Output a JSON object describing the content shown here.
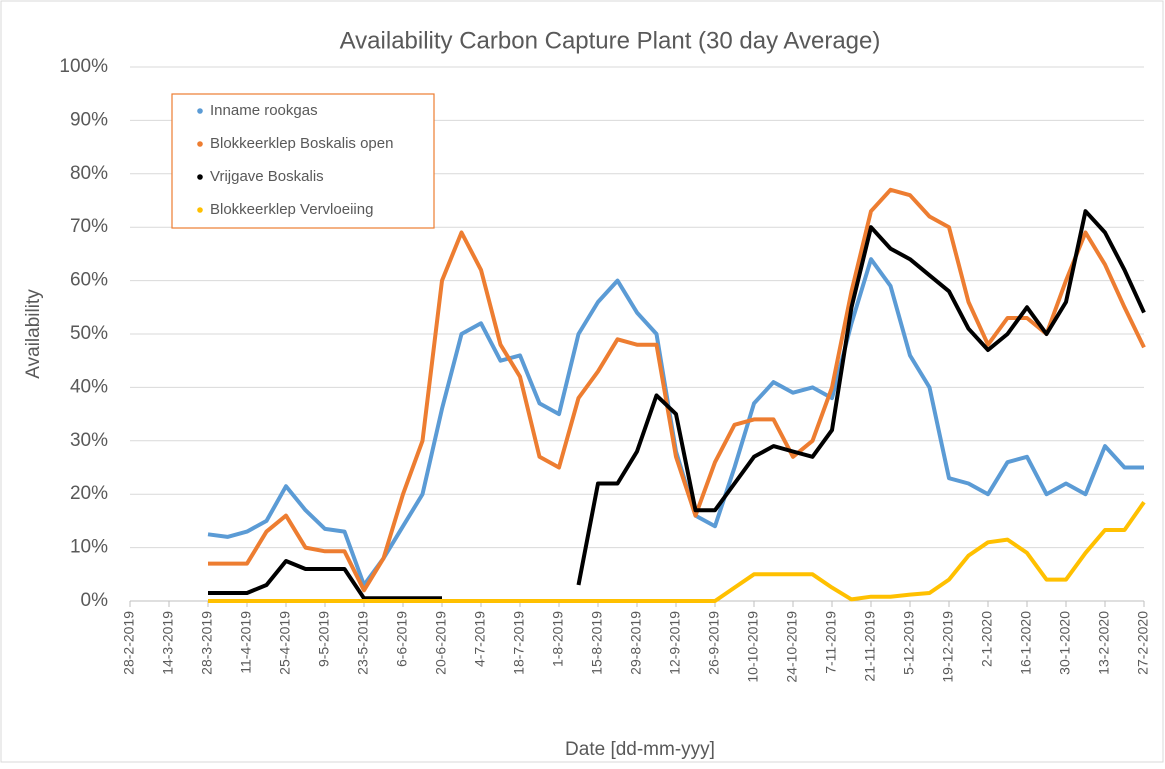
{
  "chart_data": {
    "type": "line",
    "title": "Availability Carbon Capture Plant (30 day Average)",
    "xlabel": "Date [dd-mm-yyy]",
    "ylabel": "Availability",
    "categories": [
      "28-2-2019",
      null,
      "14-3-2019",
      null,
      "28-3-2019",
      null,
      "11-4-2019",
      null,
      "25-4-2019",
      null,
      "9-5-2019",
      null,
      "23-5-2019",
      null,
      "6-6-2019",
      null,
      "20-6-2019",
      null,
      "4-7-2019",
      null,
      "18-7-2019",
      null,
      "1-8-2019",
      null,
      "15-8-2019",
      null,
      "29-8-2019",
      null,
      "12-9-2019",
      null,
      "26-9-2019",
      null,
      "10-10-2019",
      null,
      "24-10-2019",
      null,
      "7-11-2019",
      null,
      "21-11-2019",
      null,
      "5-12-2019",
      null,
      "19-12-2019",
      null,
      "2-1-2020",
      null,
      "16-1-2020",
      null,
      "30-1-2020",
      null,
      "13-2-2020",
      null,
      "27-2-2020"
    ],
    "series": [
      {
        "name": "Inname rookgas",
        "color": "#5b9bd5",
        "values": [
          null,
          null,
          null,
          null,
          12.5,
          12,
          13,
          15,
          21.5,
          17,
          13.5,
          13,
          3,
          8,
          14,
          20,
          36,
          50,
          52,
          45,
          46,
          37,
          35,
          50,
          56,
          60,
          54,
          50,
          28,
          16,
          14,
          25,
          37,
          41,
          39,
          40,
          38,
          52,
          64,
          59,
          46,
          40,
          23,
          22,
          20,
          26,
          27,
          20,
          22,
          20,
          29,
          25,
          25
        ]
      },
      {
        "name": "Blokkeerklep Boskalis open",
        "color": "#ed7d31",
        "values": [
          null,
          null,
          null,
          null,
          7,
          7,
          7,
          13,
          16,
          10,
          9.3,
          9.3,
          2,
          8,
          20,
          30,
          60,
          69,
          62,
          48,
          42,
          27,
          25,
          38,
          43,
          49,
          48,
          48,
          27,
          16,
          26,
          33,
          34,
          34,
          27,
          30,
          40,
          58,
          73,
          77,
          76,
          72,
          70,
          56,
          48,
          53,
          53,
          50,
          60,
          69,
          63,
          55,
          47.5
        ]
      },
      {
        "name": "Vrijgave Boskalis",
        "color": "#000000",
        "values": [
          null,
          null,
          null,
          null,
          1.5,
          1.5,
          1.5,
          3,
          7.5,
          6,
          6,
          6,
          0.5,
          0.5,
          0.5,
          0.5,
          0.5,
          null,
          null,
          null,
          null,
          null,
          null,
          3,
          22,
          22,
          28,
          38.5,
          35,
          17,
          17,
          22,
          27,
          29,
          28,
          27,
          32,
          55,
          70,
          66,
          64,
          61,
          58,
          51,
          47,
          50,
          55,
          50,
          56,
          73,
          69,
          62,
          54
        ]
      },
      {
        "name": "Blokkeerklep Vervloeiing",
        "color": "#ffc000",
        "values": [
          null,
          null,
          null,
          null,
          0,
          0,
          0,
          0,
          0,
          0,
          0,
          0,
          0,
          0,
          0,
          0,
          0,
          0,
          0,
          0,
          0,
          0,
          0,
          0,
          0,
          0,
          0,
          0,
          0,
          0,
          0,
          2.5,
          5,
          5,
          5,
          5,
          2.5,
          0.3,
          0.8,
          0.8,
          1.2,
          1.5,
          4,
          8.5,
          11,
          11.5,
          9,
          4,
          4,
          9,
          13.3,
          13.3,
          18.5
        ]
      }
    ],
    "ylim": [
      0,
      100
    ],
    "yticks": [
      {
        "value": 0,
        "label": "0%"
      },
      {
        "value": 10,
        "label": "10%"
      },
      {
        "value": 20,
        "label": "20%"
      },
      {
        "value": 30,
        "label": "30%"
      },
      {
        "value": 40,
        "label": "40%"
      },
      {
        "value": 50,
        "label": "50%"
      },
      {
        "value": 60,
        "label": "60%"
      },
      {
        "value": 70,
        "label": "70%"
      },
      {
        "value": 80,
        "label": "80%"
      },
      {
        "value": 90,
        "label": "90%"
      },
      {
        "value": 100,
        "label": "100%"
      }
    ],
    "grid": true,
    "legend": "upper left"
  }
}
